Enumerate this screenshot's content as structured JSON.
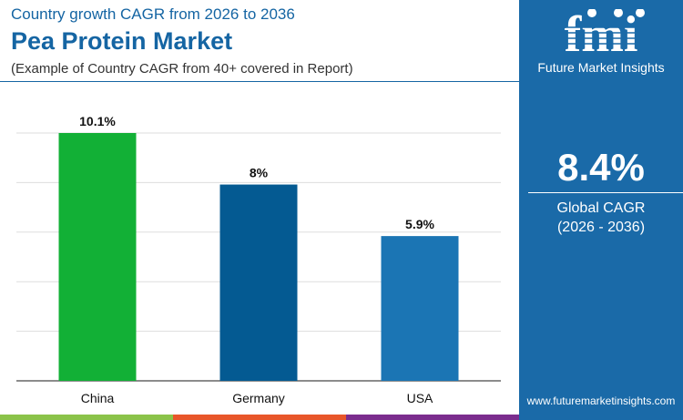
{
  "header": {
    "kicker": "Country growth CAGR from 2026 to 2036",
    "title": "Pea Protein Market",
    "subtitle": "(Example of Country CAGR from 40+ covered in Report)"
  },
  "panel": {
    "brand_logo_text": "fmi",
    "brand": "Future Market Insights",
    "value": "8.4%",
    "label": "Global CAGR",
    "period": "(2026 - 2036)",
    "url": "www.futuremarketinsights.com"
  },
  "chart_data": {
    "type": "bar",
    "categories": [
      "China",
      "Germany",
      "USA"
    ],
    "values": [
      10.1,
      8,
      5.9
    ],
    "data_labels": [
      "10.1%",
      "8%",
      "5.9%"
    ],
    "colors": [
      "#12b036",
      "#045a92",
      "#1b75b4"
    ],
    "ylim": [
      0,
      10.1
    ],
    "grid": true,
    "title": "",
    "xlabel": "",
    "ylabel": ""
  },
  "colors": {
    "accent": "#1565a3",
    "panel": "#1a6aa8",
    "bottom_bar": [
      "#8bc34a",
      "#e8562a",
      "#7b2d8e"
    ]
  }
}
